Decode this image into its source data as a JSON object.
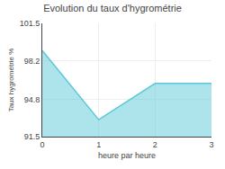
{
  "chart_data": {
    "type": "area",
    "title": "Evolution du taux d'hygrométrie",
    "xlabel": "heure par heure",
    "ylabel": "Taux hygrométrie %",
    "x": [
      0,
      1,
      2,
      3
    ],
    "values": [
      99.1,
      93.0,
      96.2,
      96.2
    ],
    "color": "#5bc8d8",
    "xlim": [
      0,
      3
    ],
    "xticks": [
      0,
      1,
      2,
      3
    ],
    "ylim": [
      91.5,
      101.5
    ],
    "yticks": [
      91.5,
      94.8,
      98.2,
      101.5
    ],
    "grid": true
  }
}
